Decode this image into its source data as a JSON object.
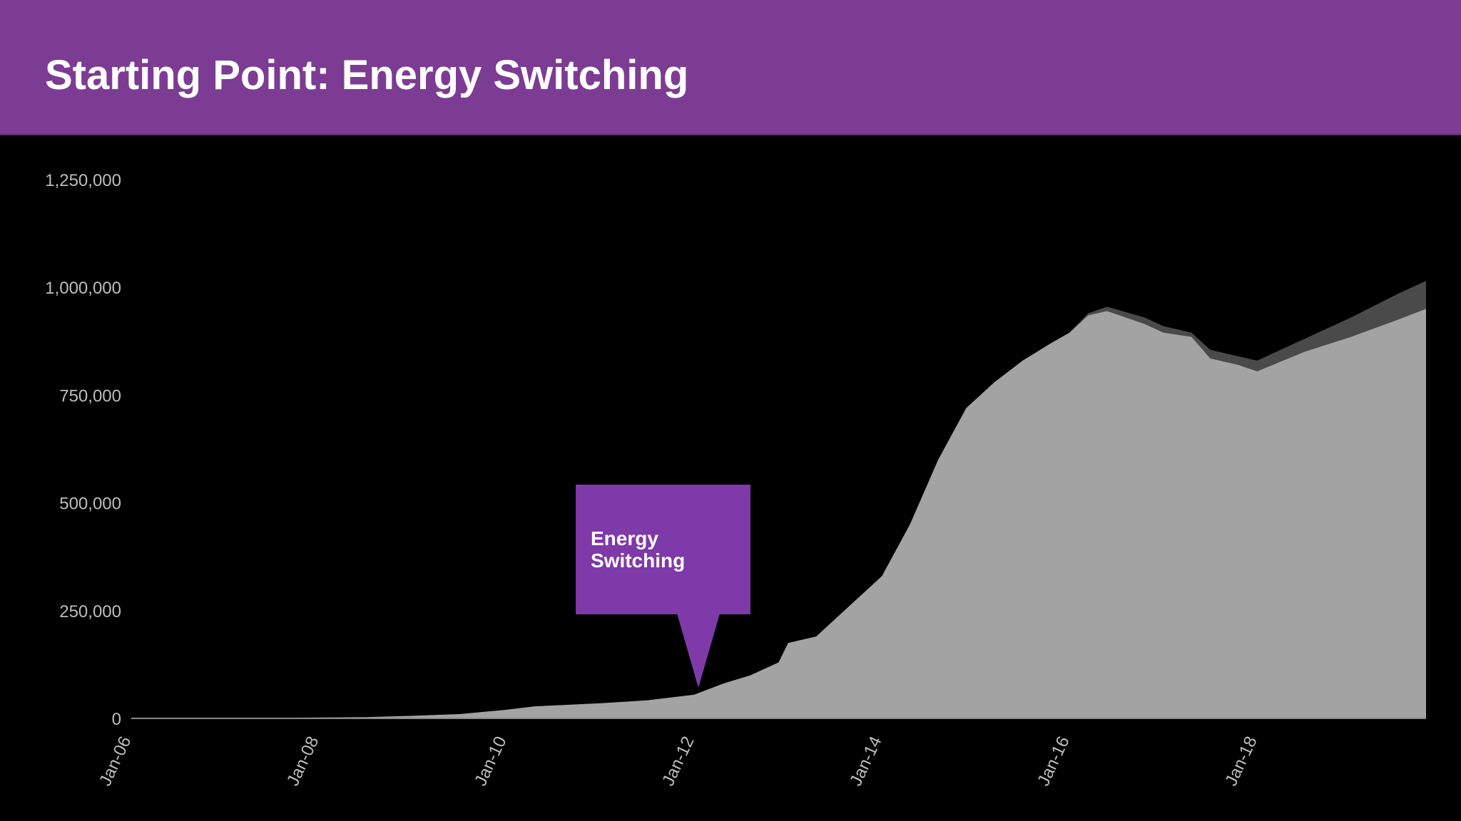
{
  "slide": {
    "title": "Starting Point: Energy Switching",
    "callout_text": "Energy Switching",
    "colors": {
      "header": "#7d3c93",
      "callout": "#7e3aa8",
      "area": "#a3a3a3",
      "upper_band": "#4a4a4a",
      "background": "#000000"
    }
  },
  "chart_data": {
    "type": "area",
    "title": "",
    "xlabel": "",
    "ylabel": "",
    "ylim": [
      0,
      1250000
    ],
    "y_ticks": [
      "0",
      "250,000",
      "500,000",
      "750,000",
      "1,000,000",
      "1,250,000"
    ],
    "y_tick_values": [
      0,
      250000,
      500000,
      750000,
      1000000,
      1250000
    ],
    "x_ticks": [
      "Jan-06",
      "Jan-08",
      "Jan-10",
      "Jan-12",
      "Jan-14",
      "Jan-16",
      "Jan-18"
    ],
    "x_tick_years": [
      2006,
      2008,
      2010,
      2012,
      2014,
      2016,
      2018
    ],
    "xlim": [
      2006,
      2019.8
    ],
    "annotation": {
      "text": "Energy Switching",
      "x": 2012.0,
      "y": 55000
    },
    "series": [
      {
        "x": [
          2006,
          2007,
          2008,
          2008.5,
          2009,
          2009.5,
          2010,
          2010.3,
          2010.5,
          2011,
          2011.5,
          2012,
          2012.3,
          2012.6,
          2012.9,
          2013.0,
          2013.1,
          2013.3,
          2013.6,
          2014,
          2014.3,
          2014.6,
          2014.9,
          2015.2,
          2015.5,
          2015.8,
          2016.0,
          2016.2,
          2016.4,
          2016.8,
          2017.0,
          2017.3,
          2017.5,
          2017.8,
          2018.0,
          2018.5,
          2019.0,
          2019.5,
          2019.8
        ],
        "values": [
          0,
          0,
          2000,
          3000,
          6000,
          10000,
          20000,
          28000,
          30000,
          35000,
          42000,
          55000,
          80000,
          100000,
          130000,
          175000,
          180000,
          190000,
          250000,
          330000,
          450000,
          600000,
          720000,
          780000,
          830000,
          870000,
          895000,
          935000,
          945000,
          915000,
          895000,
          885000,
          835000,
          820000,
          805000,
          850000,
          885000,
          925000,
          950000
        ]
      },
      {
        "x": [
          2016.0,
          2016.2,
          2016.4,
          2016.8,
          2017.0,
          2017.3,
          2017.5,
          2017.8,
          2018.0,
          2018.5,
          2019.0,
          2019.5,
          2019.8
        ],
        "values": [
          895000,
          940000,
          955000,
          930000,
          910000,
          895000,
          855000,
          840000,
          830000,
          880000,
          930000,
          985000,
          1015000
        ]
      }
    ]
  }
}
